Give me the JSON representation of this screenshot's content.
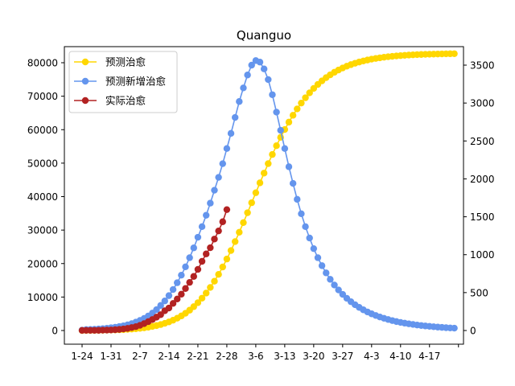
{
  "chart_data": {
    "type": "line",
    "title": "Quanguo",
    "xlabel": "",
    "ylabel_left": "",
    "ylabel_right": "",
    "x_tick_labels": [
      "1-24",
      "1-31",
      "2-7",
      "2-14",
      "2-21",
      "2-28",
      "3-6",
      "3-13",
      "3-20",
      "3-27",
      "4-3",
      "4-10",
      "4-17"
    ],
    "x_days_per_tick": 7,
    "x_num_points": 91,
    "ylim_left": [
      0,
      80000
    ],
    "yticks_left": [
      0,
      10000,
      20000,
      30000,
      40000,
      50000,
      60000,
      70000,
      80000
    ],
    "ylim_right": [
      0,
      3500
    ],
    "yticks_right": [
      0,
      500,
      1000,
      1500,
      2000,
      2500,
      3000,
      3500
    ],
    "grid": false,
    "legend_position": "top-left",
    "series": [
      {
        "name": "预测治愈",
        "axis": "left",
        "color": "#FFD700",
        "values": [
          0,
          10,
          22,
          36,
          52,
          73,
          99,
          130,
          168,
          215,
          272,
          342,
          428,
          532,
          658,
          810,
          992,
          1210,
          1470,
          1779,
          2145,
          2576,
          3082,
          3673,
          4361,
          5157,
          6073,
          7122,
          8315,
          9664,
          11178,
          12864,
          14726,
          16765,
          18978,
          21358,
          23893,
          26567,
          29358,
          32242,
          35190,
          38172,
          41157,
          44116,
          47024,
          49856,
          52590,
          55209,
          57698,
          60048,
          62250,
          64301,
          66200,
          67947,
          69546,
          71002,
          72321,
          73512,
          74581,
          75539,
          76393,
          77154,
          77830,
          78429,
          78960,
          79429,
          79843,
          80208,
          80529,
          80811,
          81059,
          81277,
          81468,
          81636,
          81783,
          81912,
          82025,
          82124,
          82211,
          82287,
          82353,
          82411,
          82462,
          82506,
          82545,
          82579,
          82609,
          82635,
          82658,
          82678,
          82695
        ]
      },
      {
        "name": "预测新增治愈",
        "axis": "right",
        "color": "#6495ED",
        "values": [
          5,
          12,
          14,
          17,
          20,
          24,
          30,
          36,
          43,
          52,
          62,
          75,
          91,
          110,
          133,
          160,
          192,
          230,
          275,
          330,
          390,
          460,
          540,
          630,
          730,
          840,
          960,
          1090,
          1230,
          1370,
          1520,
          1680,
          1850,
          2020,
          2200,
          2400,
          2600,
          2810,
          3020,
          3200,
          3370,
          3500,
          3560,
          3540,
          3450,
          3310,
          3110,
          2880,
          2640,
          2400,
          2160,
          1940,
          1730,
          1540,
          1370,
          1220,
          1080,
          960,
          855,
          760,
          675,
          600,
          535,
          477,
          425,
          380,
          340,
          305,
          273,
          245,
          220,
          198,
          178,
          161,
          145,
          131,
          118,
          107,
          97,
          88,
          80,
          72,
          66,
          60,
          55,
          50,
          45,
          41,
          37,
          34,
          31
        ]
      },
      {
        "name": "实际治愈",
        "axis": "left",
        "color": "#B22222",
        "values": [
          34,
          38,
          49,
          51,
          60,
          103,
          124,
          171,
          243,
          328,
          475,
          632,
          892,
          1153,
          1540,
          2050,
          2649,
          3281,
          3996,
          4740,
          5911,
          6723,
          8096,
          9419,
          10844,
          12552,
          14376,
          16155,
          18264,
          20659,
          22888,
          24734,
          27323,
          29745,
          32495,
          36117
        ]
      }
    ]
  }
}
